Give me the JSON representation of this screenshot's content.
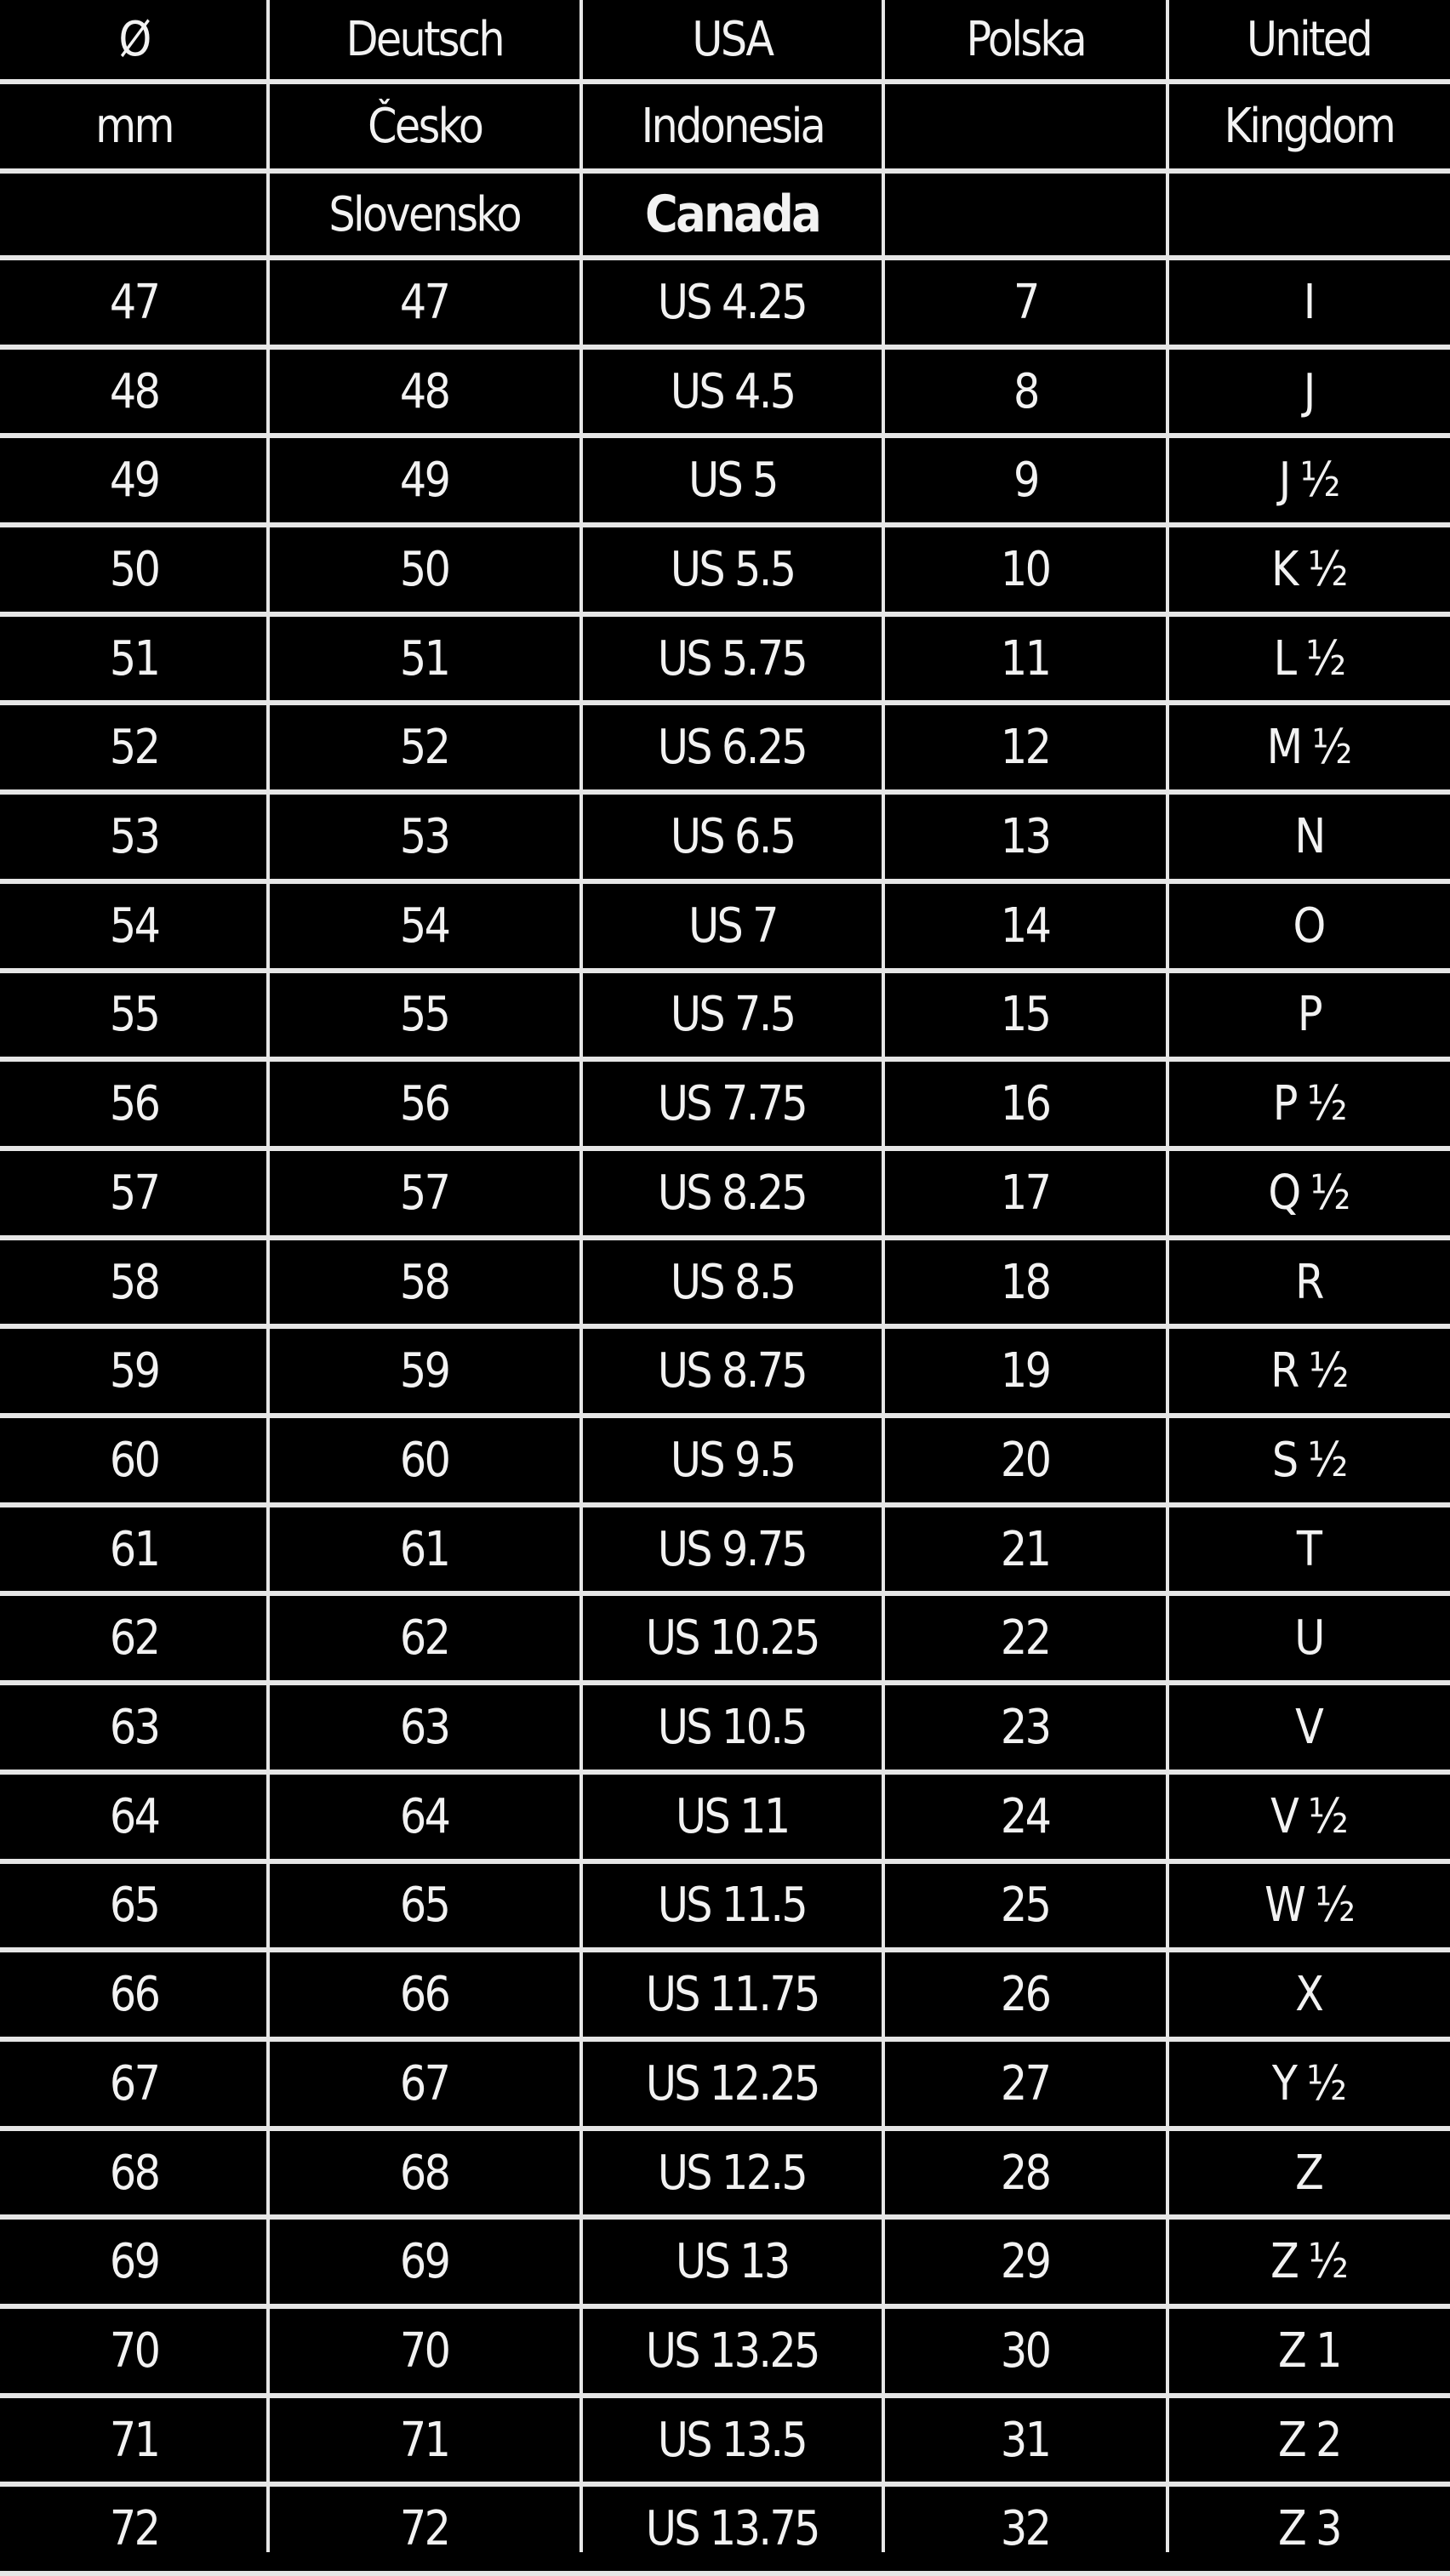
{
  "header_rows": [
    [
      "Ø",
      "Deutsch",
      "USA",
      "Polska",
      "United"
    ],
    [
      "mm",
      "Česko",
      "Indonesia",
      "",
      "Kingdom"
    ],
    [
      "",
      "Slovensko",
      "Canada",
      "",
      ""
    ]
  ],
  "rows": [
    [
      "47",
      "47",
      "US 4.25",
      "7",
      "I"
    ],
    [
      "48",
      "48",
      "US 4.5",
      "8",
      "J"
    ],
    [
      "49",
      "49",
      "US 5",
      "9",
      "J ½"
    ],
    [
      "50",
      "50",
      "US 5.5",
      "10",
      "K ½"
    ],
    [
      "51",
      "51",
      "US 5.75",
      "11",
      "L ½"
    ],
    [
      "52",
      "52",
      "US 6.25",
      "12",
      "M ½"
    ],
    [
      "53",
      "53",
      "US 6.5",
      "13",
      "N"
    ],
    [
      "54",
      "54",
      "US 7",
      "14",
      "O"
    ],
    [
      "55",
      "55",
      "US 7.5",
      "15",
      "P"
    ],
    [
      "56",
      "56",
      "US 7.75",
      "16",
      "P ½"
    ],
    [
      "57",
      "57",
      "US 8.25",
      "17",
      "Q ½"
    ],
    [
      "58",
      "58",
      "US 8.5",
      "18",
      "R"
    ],
    [
      "59",
      "59",
      "US 8.75",
      "19",
      "R ½"
    ],
    [
      "60",
      "60",
      "US 9.5",
      "20",
      "S ½"
    ],
    [
      "61",
      "61",
      "US 9.75",
      "21",
      "T"
    ],
    [
      "62",
      "62",
      "US 10.25",
      "22",
      "U"
    ],
    [
      "63",
      "63",
      "US 10.5",
      "23",
      "V"
    ],
    [
      "64",
      "64",
      "US 11",
      "24",
      "V ½"
    ],
    [
      "65",
      "65",
      "US 11.5",
      "25",
      "W ½"
    ],
    [
      "66",
      "66",
      "US 11.75",
      "26",
      "X"
    ],
    [
      "67",
      "67",
      "US 12.25",
      "27",
      "Y ½"
    ],
    [
      "68",
      "68",
      "US 12.5",
      "28",
      "Z"
    ],
    [
      "69",
      "69",
      "US 13",
      "29",
      "Z ½"
    ],
    [
      "70",
      "70",
      "US 13.25",
      "30",
      "Z 1"
    ],
    [
      "71",
      "71",
      "US 13.5",
      "31",
      "Z 2"
    ],
    [
      "72",
      "72",
      "US 13.75",
      "32",
      "Z 3"
    ]
  ],
  "colors": {
    "background": "#000000",
    "text": "#f2f2f2",
    "grid": "#e6e6e6"
  }
}
